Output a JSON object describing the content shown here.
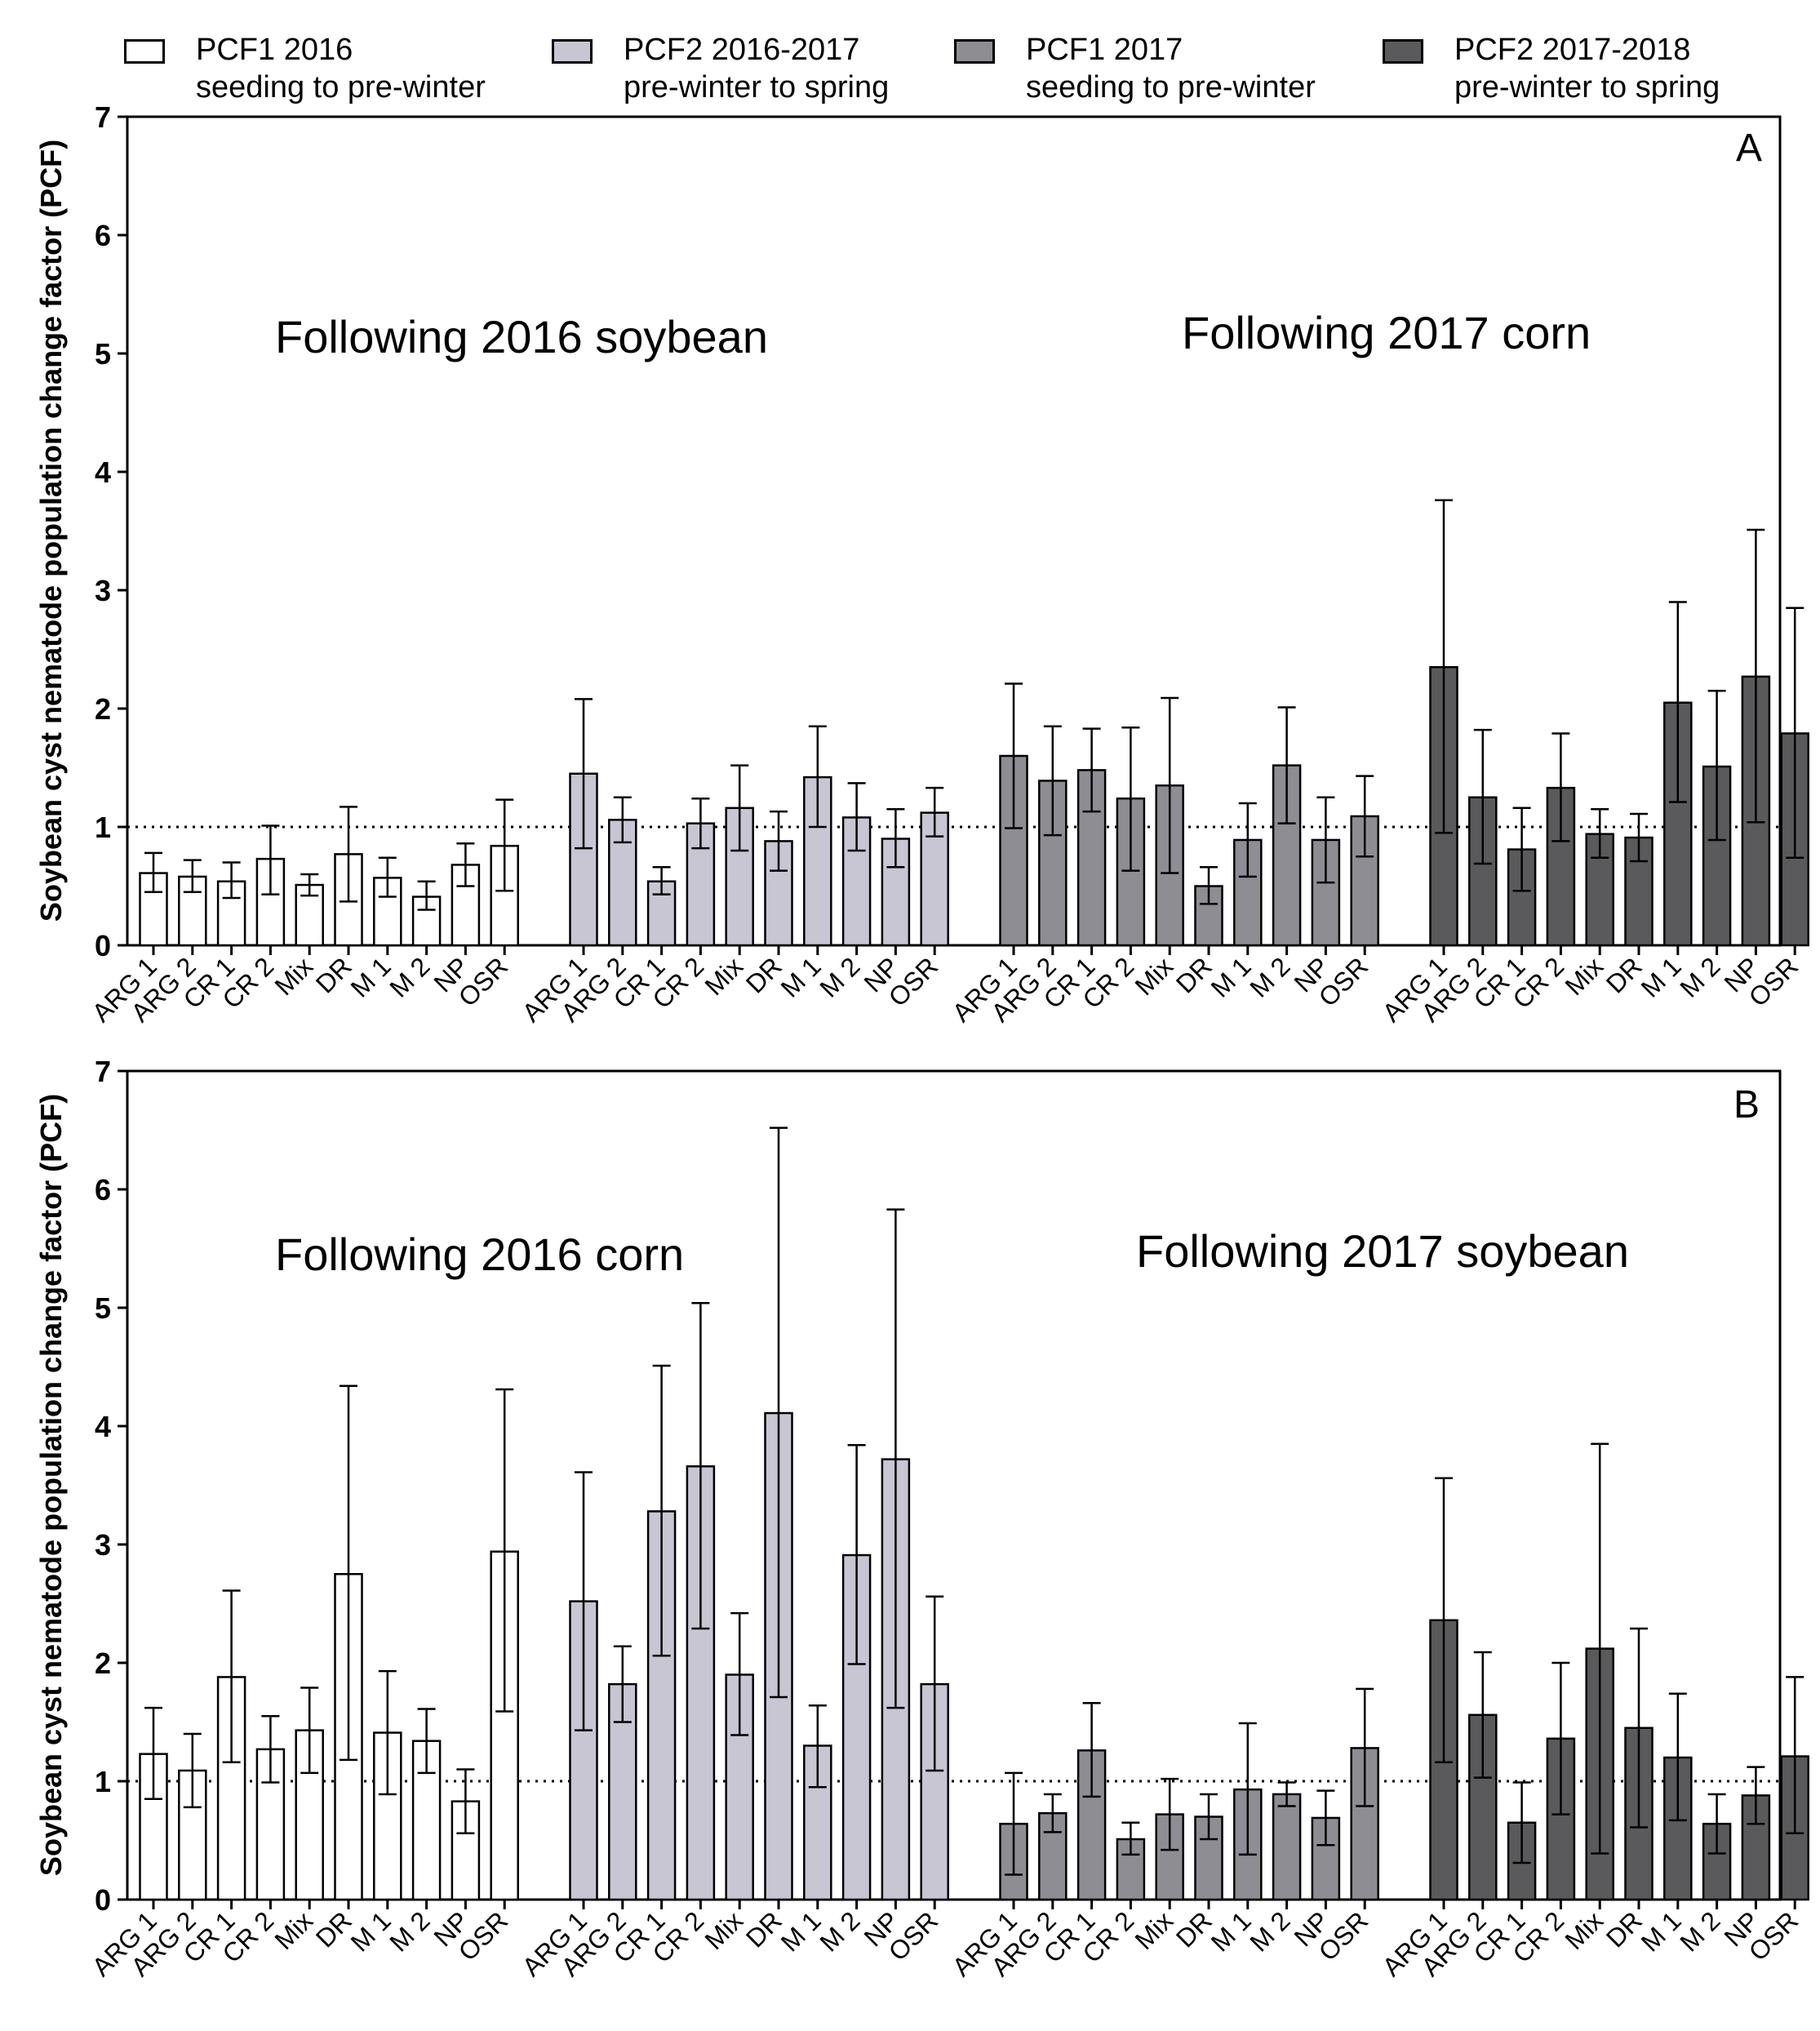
{
  "legend": {
    "items": [
      {
        "line1": "PCF1 2016",
        "line2": "seeding to pre-winter",
        "color": "#ffffff"
      },
      {
        "line1": "PCF2 2016-2017",
        "line2": "pre-winter to spring",
        "color": "#c8c6d3"
      },
      {
        "line1": "PCF1 2017",
        "line2": "seeding to pre-winter",
        "color": "#8e8d94"
      },
      {
        "line1": "PCF2 2017-2018",
        "line2": "pre-winter to spring",
        "color": "#5a5a5c"
      }
    ]
  },
  "chart_data": [
    {
      "type": "bar",
      "panel_label": "A",
      "ylabel": "Soybean cyst nematode population change factor (PCF)",
      "ylim": [
        0,
        7
      ],
      "yticks": [
        0,
        1,
        2,
        3,
        4,
        5,
        6,
        7
      ],
      "reference_line": 1,
      "annotations": [
        "Following 2016 soybean",
        "Following 2017 corn"
      ],
      "categories": [
        "ARG 1",
        "ARG 2",
        "CR 1",
        "CR 2",
        "Mix",
        "DR",
        "M 1",
        "M 2",
        "NP",
        "OSR"
      ],
      "series": [
        {
          "name": "PCF1 2016",
          "values": [
            0.61,
            0.58,
            0.54,
            0.73,
            0.51,
            0.77,
            0.57,
            0.41,
            0.68,
            0.84
          ],
          "err_low": [
            0.45,
            0.45,
            0.4,
            0.43,
            0.42,
            0.37,
            0.41,
            0.3,
            0.5,
            0.46
          ],
          "err_high": [
            0.78,
            0.72,
            0.7,
            1.01,
            0.6,
            1.17,
            0.74,
            0.54,
            0.86,
            1.23
          ]
        },
        {
          "name": "PCF2 2016-2017",
          "values": [
            1.45,
            1.06,
            0.54,
            1.03,
            1.16,
            0.88,
            1.42,
            1.08,
            0.9,
            1.12
          ],
          "err_low": [
            0.82,
            0.87,
            0.43,
            0.82,
            0.8,
            0.63,
            1.0,
            0.8,
            0.66,
            0.92
          ],
          "err_high": [
            2.08,
            1.25,
            0.66,
            1.24,
            1.52,
            1.13,
            1.85,
            1.37,
            1.15,
            1.33
          ]
        },
        {
          "name": "PCF1 2017",
          "values": [
            1.6,
            1.39,
            1.48,
            1.24,
            1.35,
            0.5,
            0.89,
            1.52,
            0.89,
            1.09
          ],
          "err_low": [
            0.99,
            0.93,
            1.13,
            0.63,
            0.61,
            0.35,
            0.58,
            1.03,
            0.53,
            0.75
          ],
          "err_high": [
            2.21,
            1.85,
            1.83,
            1.84,
            2.09,
            0.66,
            1.2,
            2.01,
            1.25,
            1.43
          ]
        },
        {
          "name": "PCF2 2017-2018",
          "values": [
            2.35,
            1.25,
            0.81,
            1.33,
            0.94,
            0.91,
            2.05,
            1.51,
            2.27,
            1.79
          ],
          "err_low": [
            0.95,
            0.69,
            0.46,
            0.88,
            0.74,
            0.71,
            1.21,
            0.89,
            1.04,
            0.74
          ],
          "err_high": [
            3.76,
            1.82,
            1.16,
            1.79,
            1.15,
            1.11,
            2.9,
            2.15,
            3.51,
            2.85
          ]
        }
      ]
    },
    {
      "type": "bar",
      "panel_label": "B",
      "ylabel": "Soybean cyst nematode population change factor (PCF)",
      "ylim": [
        0,
        7
      ],
      "yticks": [
        0,
        1,
        2,
        3,
        4,
        5,
        6,
        7
      ],
      "reference_line": 1,
      "annotations": [
        "Following 2016 corn",
        "Following 2017 soybean"
      ],
      "categories": [
        "ARG 1",
        "ARG 2",
        "CR 1",
        "CR 2",
        "Mix",
        "DR",
        "M 1",
        "M 2",
        "NP",
        "OSR"
      ],
      "series": [
        {
          "name": "PCF1 2016",
          "values": [
            1.23,
            1.09,
            1.88,
            1.27,
            1.43,
            2.75,
            1.41,
            1.34,
            0.83,
            2.94
          ],
          "err_low": [
            0.85,
            0.78,
            1.16,
            0.99,
            1.07,
            1.18,
            0.89,
            1.07,
            0.56,
            1.59
          ],
          "err_high": [
            1.62,
            1.4,
            2.61,
            1.55,
            1.79,
            4.34,
            1.93,
            1.61,
            1.1,
            4.31
          ]
        },
        {
          "name": "PCF2 2016-2017",
          "values": [
            2.52,
            1.82,
            3.28,
            3.66,
            1.9,
            4.11,
            1.3,
            2.91,
            3.72,
            1.82
          ],
          "err_low": [
            1.43,
            1.5,
            2.06,
            2.29,
            1.39,
            1.71,
            0.95,
            1.99,
            1.62,
            1.09
          ],
          "err_high": [
            3.61,
            2.14,
            4.51,
            5.04,
            2.42,
            6.52,
            1.64,
            3.84,
            5.83,
            2.56
          ]
        },
        {
          "name": "PCF1 2017",
          "values": [
            0.64,
            0.73,
            1.26,
            0.51,
            0.72,
            0.7,
            0.93,
            0.89,
            0.69,
            1.28
          ],
          "err_low": [
            0.21,
            0.57,
            0.87,
            0.38,
            0.42,
            0.51,
            0.38,
            0.79,
            0.46,
            0.79
          ],
          "err_high": [
            1.07,
            0.89,
            1.66,
            0.65,
            1.02,
            0.89,
            1.49,
            0.99,
            0.92,
            1.78
          ]
        },
        {
          "name": "PCF2 2017-2018",
          "values": [
            2.36,
            1.56,
            0.65,
            1.36,
            2.12,
            1.45,
            1.2,
            0.64,
            0.88,
            1.21
          ],
          "err_low": [
            1.16,
            1.03,
            0.31,
            0.72,
            0.39,
            0.61,
            0.67,
            0.39,
            0.64,
            0.56
          ],
          "err_high": [
            3.56,
            2.09,
            0.99,
            2.0,
            3.85,
            2.29,
            1.74,
            0.89,
            1.12,
            1.88
          ]
        }
      ]
    }
  ]
}
